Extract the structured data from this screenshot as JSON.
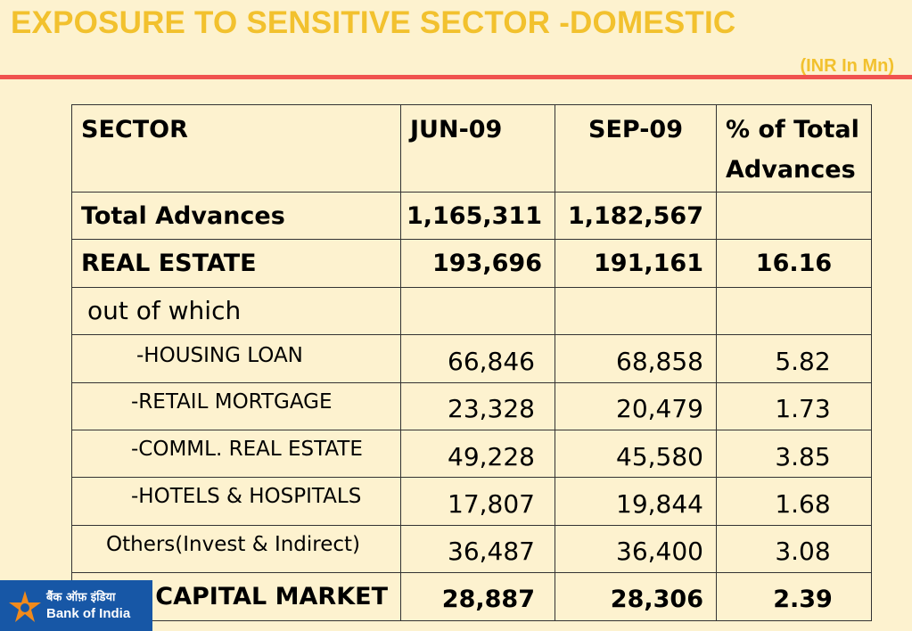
{
  "header": {
    "title": "EXPOSURE TO SENSITIVE SECTOR -DOMESTIC",
    "unit": "(INR In Mn)"
  },
  "table": {
    "headers": [
      "SECTOR",
      "JUN-09",
      "SEP-09",
      "% of Total Advances"
    ],
    "header_pct_line1": "% of Total",
    "header_pct_line2": "Advances",
    "rows": [
      {
        "sector": "Total Advances",
        "jun": "1,165,311",
        "sep": "1,182,567",
        "pct": ""
      },
      {
        "sector": "REAL ESTATE",
        "jun": "193,696",
        "sep": "191,161",
        "pct": "16.16"
      },
      {
        "sector": "out of which",
        "jun": "",
        "sep": "",
        "pct": ""
      },
      {
        "sector": "-HOUSING LOAN",
        "jun": "66,846",
        "sep": "68,858",
        "pct": "5.82"
      },
      {
        "sector": "-RETAIL MORTGAGE",
        "jun": "23,328",
        "sep": "20,479",
        "pct": "1.73"
      },
      {
        "sector": "-COMML. REAL ESTATE",
        "jun": "49,228",
        "sep": "45,580",
        "pct": "3.85"
      },
      {
        "sector": "-HOTELS & HOSPITALS",
        "jun": "17,807",
        "sep": "19,844",
        "pct": "1.68"
      },
      {
        "sector": "Others(Invest & Indirect)",
        "jun": "36,487",
        "sep": "36,400",
        "pct": "3.08"
      },
      {
        "sector": "CAPITAL MARKET",
        "jun": "28,887",
        "sep": "28,306",
        "pct": "2.39"
      }
    ]
  },
  "logo": {
    "hindi": "बैंक ऑफ़ इंडिया",
    "english": "Bank of India",
    "bg_color": "#1757a6",
    "star_color": "#f08a1c"
  },
  "colors": {
    "title": "#f2c12e",
    "rule": "#f0524f",
    "background": "#fdf2cf"
  }
}
